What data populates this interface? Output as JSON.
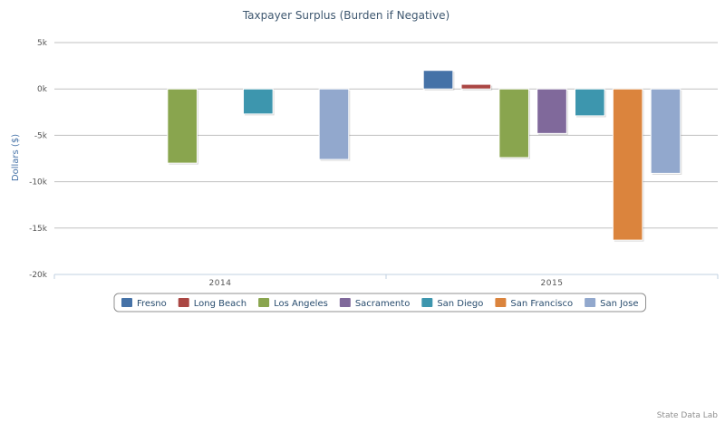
{
  "chart_data": {
    "type": "bar",
    "title": "Taxpayer Surplus (Burden if Negative)",
    "xlabel": "",
    "ylabel": "Dollars ($)",
    "categories": [
      "2014",
      "2015"
    ],
    "ylim": [
      -20000,
      5000
    ],
    "yticks": [
      5000,
      0,
      -5000,
      -10000,
      -15000,
      -20000
    ],
    "ytick_labels": [
      "5k",
      "0k",
      "-5k",
      "-10k",
      "-15k",
      "-20k"
    ],
    "grid": true,
    "legend_position": "bottom-center",
    "series": [
      {
        "name": "Fresno",
        "color": "#4572a7",
        "values": [
          null,
          2000
        ]
      },
      {
        "name": "Long Beach",
        "color": "#aa4643",
        "values": [
          null,
          500
        ]
      },
      {
        "name": "Los Angeles",
        "color": "#89a54e",
        "values": [
          -8000,
          -7400
        ]
      },
      {
        "name": "Sacramento",
        "color": "#80699b",
        "values": [
          null,
          -4800
        ]
      },
      {
        "name": "San Diego",
        "color": "#3d96ae",
        "values": [
          -2700,
          -2900
        ]
      },
      {
        "name": "San Francisco",
        "color": "#db843d",
        "values": [
          null,
          -16300
        ]
      },
      {
        "name": "San Jose",
        "color": "#92a8cd",
        "values": [
          -7600,
          -9100
        ]
      }
    ],
    "credit": "State Data Lab"
  }
}
